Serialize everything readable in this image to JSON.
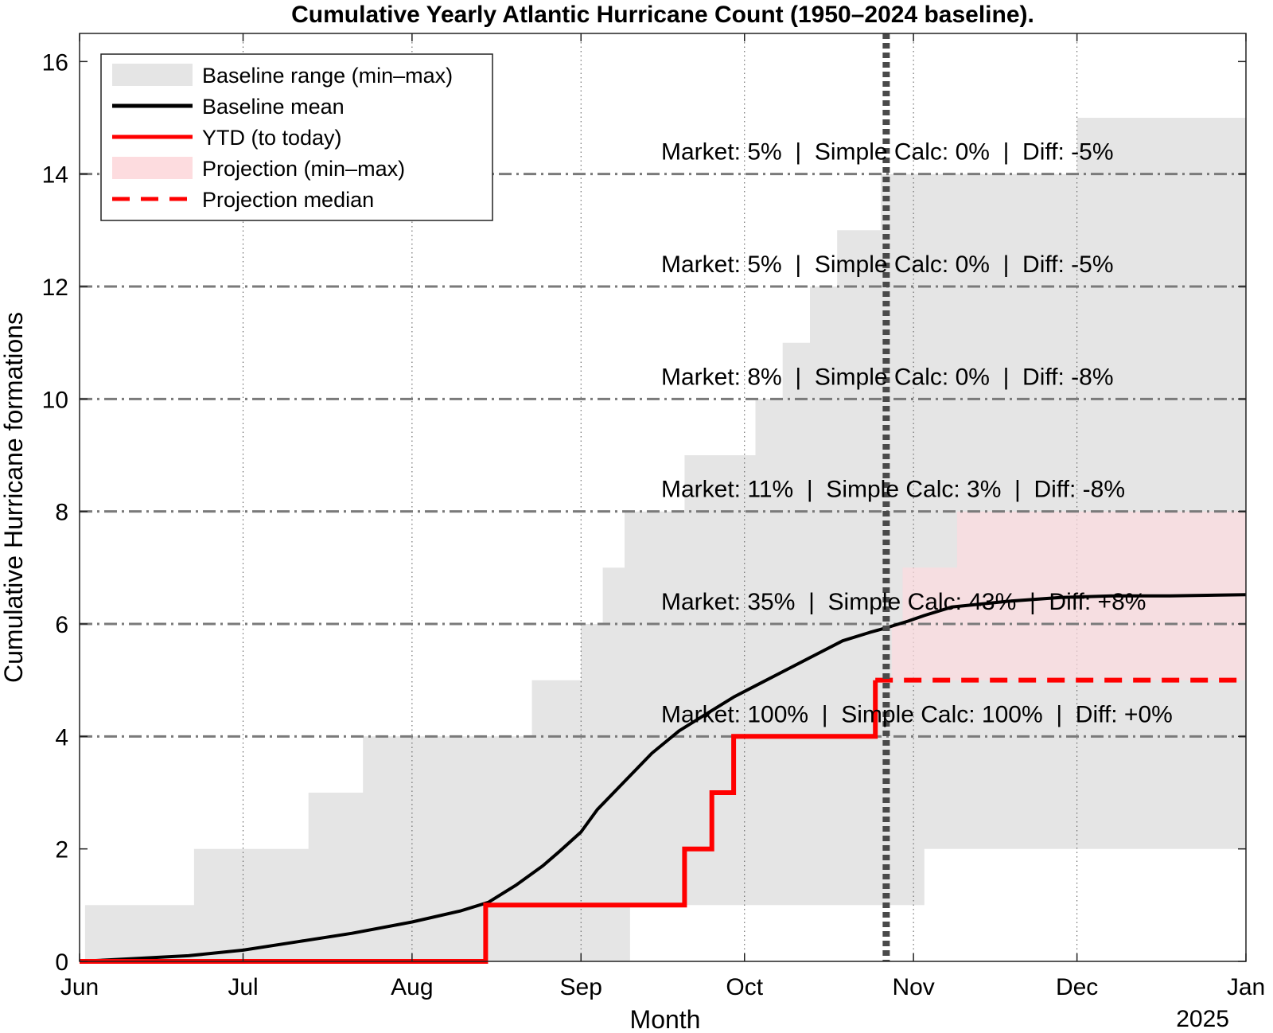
{
  "chart_data": {
    "type": "line",
    "title": "Cumulative Yearly Atlantic Hurricane Count (1950–2024 baseline).",
    "xlabel": "Month",
    "ylabel": "Cumulative Hurricane formations",
    "x_secondary_label": "2025",
    "xlim_days": [
      0,
      214
    ],
    "ylim": [
      0,
      16.5
    ],
    "x_ticks": [
      {
        "label": "Jun",
        "day": 0
      },
      {
        "label": "Jul",
        "day": 30
      },
      {
        "label": "Aug",
        "day": 61
      },
      {
        "label": "Sep",
        "day": 92
      },
      {
        "label": "Oct",
        "day": 122
      },
      {
        "label": "Nov",
        "day": 153
      },
      {
        "label": "Dec",
        "day": 183
      },
      {
        "label": "Jan",
        "day": 214
      }
    ],
    "y_ticks": [
      0,
      2,
      4,
      6,
      8,
      10,
      12,
      14,
      16
    ],
    "grid": "dotted vertical at month ticks",
    "legend_position": "top-left",
    "legend": [
      {
        "label": "Baseline range (min–max)",
        "kind": "fill",
        "color": "#e5e5e5"
      },
      {
        "label": "Baseline mean",
        "kind": "line",
        "color": "#000000"
      },
      {
        "label": "YTD (to today)",
        "kind": "line",
        "color": "#ff0000"
      },
      {
        "label": "Projection (min–max)",
        "kind": "fill",
        "color": "#fddcdf"
      },
      {
        "label": "Projection median",
        "kind": "dashed",
        "color": "#ff0000"
      }
    ],
    "today_day": 148,
    "series": [
      {
        "name": "Baseline range (min–max)",
        "color": "#e5e5e5",
        "upper_steps": [
          [
            0,
            0
          ],
          [
            1,
            1
          ],
          [
            21,
            2
          ],
          [
            42,
            3
          ],
          [
            52,
            4
          ],
          [
            83,
            5
          ],
          [
            92,
            6
          ],
          [
            96,
            7
          ],
          [
            100,
            8
          ],
          [
            111,
            9
          ],
          [
            124,
            10
          ],
          [
            129,
            11
          ],
          [
            134,
            12
          ],
          [
            139,
            13
          ],
          [
            147,
            14
          ],
          [
            183,
            15
          ],
          [
            214,
            15
          ]
        ],
        "lower_steps": [
          [
            0,
            0
          ],
          [
            101,
            1
          ],
          [
            155,
            2
          ],
          [
            214,
            2
          ]
        ]
      },
      {
        "name": "Projection (min–max)",
        "color": "#fddcdf",
        "opacity": 0.7,
        "upper_steps": [
          [
            149,
            6
          ],
          [
            151,
            7
          ],
          [
            161,
            8
          ],
          [
            214,
            8
          ]
        ],
        "lower_steps": [
          [
            149,
            5
          ],
          [
            214,
            5
          ]
        ]
      },
      {
        "name": "Baseline mean",
        "color": "#000000",
        "x": [
          0,
          10,
          20,
          30,
          40,
          50,
          61,
          70,
          75,
          80,
          85,
          88,
          92,
          95,
          100,
          105,
          110,
          115,
          120,
          125,
          130,
          135,
          140,
          145,
          148,
          152,
          155,
          160,
          170,
          180,
          190,
          200,
          214
        ],
        "y": [
          0,
          0.05,
          0.1,
          0.2,
          0.35,
          0.5,
          0.7,
          0.9,
          1.05,
          1.35,
          1.7,
          1.95,
          2.3,
          2.7,
          3.2,
          3.7,
          4.1,
          4.4,
          4.7,
          4.95,
          5.2,
          5.45,
          5.7,
          5.85,
          5.93,
          6.05,
          6.15,
          6.3,
          6.4,
          6.47,
          6.5,
          6.5,
          6.52
        ]
      },
      {
        "name": "YTD (to today)",
        "color": "#ff0000",
        "steps": [
          [
            0,
            0
          ],
          [
            74.5,
            1
          ],
          [
            111,
            2
          ],
          [
            116,
            3
          ],
          [
            120,
            4
          ],
          [
            146,
            5
          ]
        ],
        "end_day": 146
      },
      {
        "name": "Projection median",
        "color": "#ff0000",
        "style": "dashed",
        "x": [
          146,
          214
        ],
        "y": [
          5,
          5
        ]
      }
    ],
    "annotations": [
      {
        "y": 14,
        "text": "Market: 5%  |  Simple Calc: 0%  |  Diff: -5%"
      },
      {
        "y": 12,
        "text": "Market: 5%  |  Simple Calc: 0%  |  Diff: -5%"
      },
      {
        "y": 10,
        "text": "Market: 8%  |  Simple Calc: 0%  |  Diff: -8%"
      },
      {
        "y": 8,
        "text": "Market: 11%  |  Simple Calc: 3%  |  Diff: -8%"
      },
      {
        "y": 6,
        "text": "Market: 35%  |  Simple Calc: 43%  |  Diff: +8%"
      },
      {
        "y": 4,
        "text": "Market: 100%  |  Simple Calc: 100%  |  Diff: +0%"
      }
    ]
  }
}
